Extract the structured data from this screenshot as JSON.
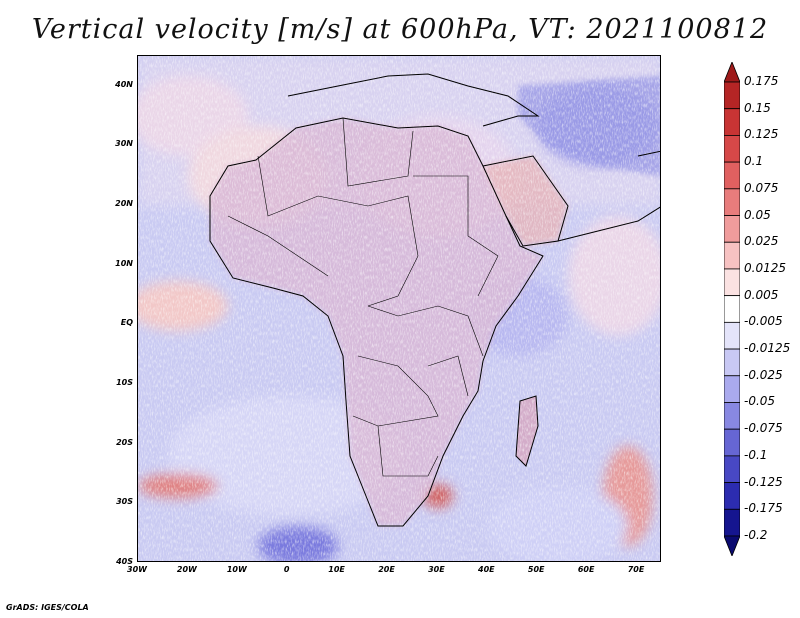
{
  "title": "Vertical velocity [m/s] at 600hPa, VT: 2021100812",
  "map": {
    "projection": "lat-lon",
    "lon_range": [
      -30,
      75
    ],
    "lat_range": [
      -40,
      45
    ],
    "lat_ticks": [
      {
        "value": 40,
        "label": "40N"
      },
      {
        "value": 30,
        "label": "30N"
      },
      {
        "value": 20,
        "label": "20N"
      },
      {
        "value": 10,
        "label": "10N"
      },
      {
        "value": 0,
        "label": "EQ"
      },
      {
        "value": -10,
        "label": "10S"
      },
      {
        "value": -20,
        "label": "20S"
      },
      {
        "value": -30,
        "label": "30S"
      },
      {
        "value": -40,
        "label": "40S"
      }
    ],
    "lon_ticks": [
      {
        "value": -30,
        "label": "30W"
      },
      {
        "value": -20,
        "label": "20W"
      },
      {
        "value": -10,
        "label": "10W"
      },
      {
        "value": 0,
        "label": "0"
      },
      {
        "value": 10,
        "label": "10E"
      },
      {
        "value": 20,
        "label": "20E"
      },
      {
        "value": 30,
        "label": "30E"
      },
      {
        "value": 40,
        "label": "40E"
      },
      {
        "value": 50,
        "label": "50E"
      },
      {
        "value": 60,
        "label": "60E"
      },
      {
        "value": 70,
        "label": "70E"
      }
    ]
  },
  "colorbar": {
    "labels": [
      "0.175",
      "0.15",
      "0.125",
      "0.1",
      "0.075",
      "0.05",
      "0.025",
      "0.0125",
      "0.005",
      "-0.005",
      "-0.0125",
      "-0.025",
      "-0.05",
      "-0.075",
      "-0.1",
      "-0.125",
      "-0.175",
      "-0.2"
    ],
    "colors": [
      "#9e1a1a",
      "#b52525",
      "#c83434",
      "#d64848",
      "#e06060",
      "#e87c7c",
      "#f09c9c",
      "#f7c2c2",
      "#fbe2e2",
      "#ffffff",
      "#e4e4fa",
      "#c8c8f4",
      "#aaaaee",
      "#8888e2",
      "#6666d4",
      "#4848c4",
      "#2c2cb0",
      "#15158f",
      "#0a0a70"
    ]
  },
  "credit": "GrADS: IGES/COLA"
}
